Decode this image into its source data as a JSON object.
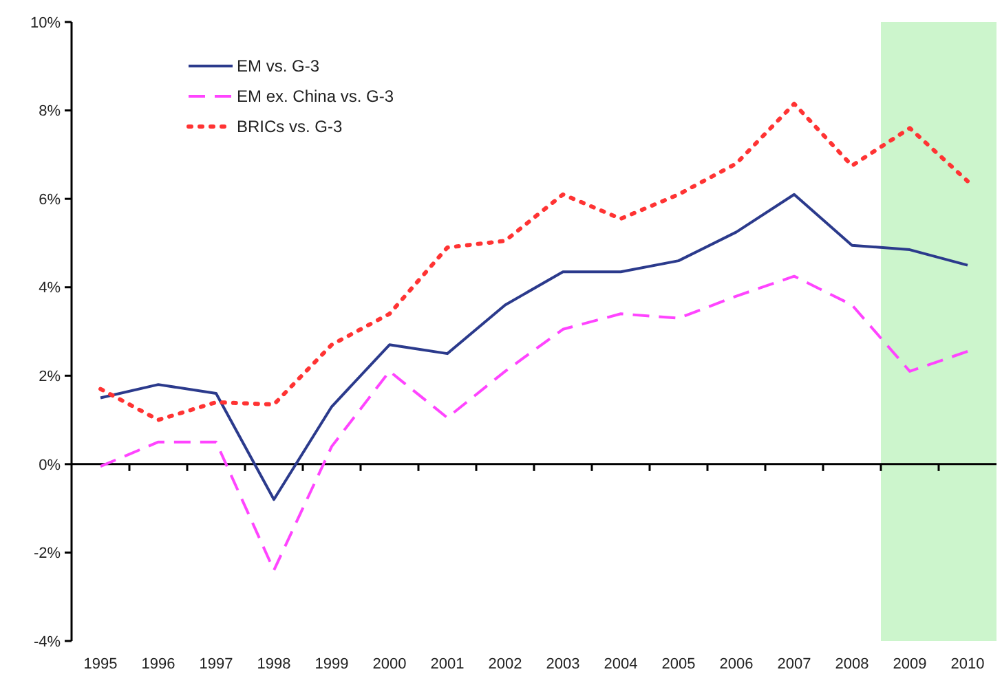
{
  "chart_data": {
    "type": "line",
    "categories": [
      "1995",
      "1996",
      "1997",
      "1998",
      "1999",
      "2000",
      "2001",
      "2002",
      "2003",
      "2004",
      "2005",
      "2006",
      "2007",
      "2008",
      "2009",
      "2010"
    ],
    "ylim": [
      -4,
      10
    ],
    "yticks": [
      {
        "value": -4,
        "label": "-4%"
      },
      {
        "value": -2,
        "label": "-2%"
      },
      {
        "value": 0,
        "label": "0%"
      },
      {
        "value": 2,
        "label": "2%"
      },
      {
        "value": 4,
        "label": "4%"
      },
      {
        "value": 6,
        "label": "6%"
      },
      {
        "value": 8,
        "label": "8%"
      },
      {
        "value": 10,
        "label": "10%"
      }
    ],
    "legend": "top left",
    "marker": "none",
    "bands": [
      {
        "axis": "x",
        "from": "2009",
        "to": "2010",
        "color": "#ccf5cc"
      }
    ],
    "series": [
      {
        "name": "EM vs. G-3",
        "color": "#2b3a8c",
        "line_style": "solid",
        "values": [
          1.5,
          1.8,
          1.6,
          -0.8,
          1.3,
          2.7,
          2.5,
          3.6,
          4.35,
          4.35,
          4.6,
          5.25,
          6.1,
          4.95,
          4.85,
          4.5
        ]
      },
      {
        "name": "EM ex. China vs. G-3",
        "color": "#ff44ff",
        "line_style": "dashed",
        "values": [
          -0.05,
          0.5,
          0.5,
          -2.4,
          0.4,
          2.1,
          1.05,
          2.1,
          3.05,
          3.4,
          3.3,
          3.8,
          4.25,
          3.6,
          2.1,
          2.55
        ]
      },
      {
        "name": "BRICs vs. G-3",
        "color": "#ff3333",
        "line_style": "dotted",
        "values": [
          1.7,
          1.0,
          1.4,
          1.35,
          2.7,
          3.4,
          4.9,
          5.05,
          6.1,
          5.55,
          6.1,
          6.8,
          8.15,
          6.75,
          7.6,
          6.4
        ]
      }
    ]
  }
}
